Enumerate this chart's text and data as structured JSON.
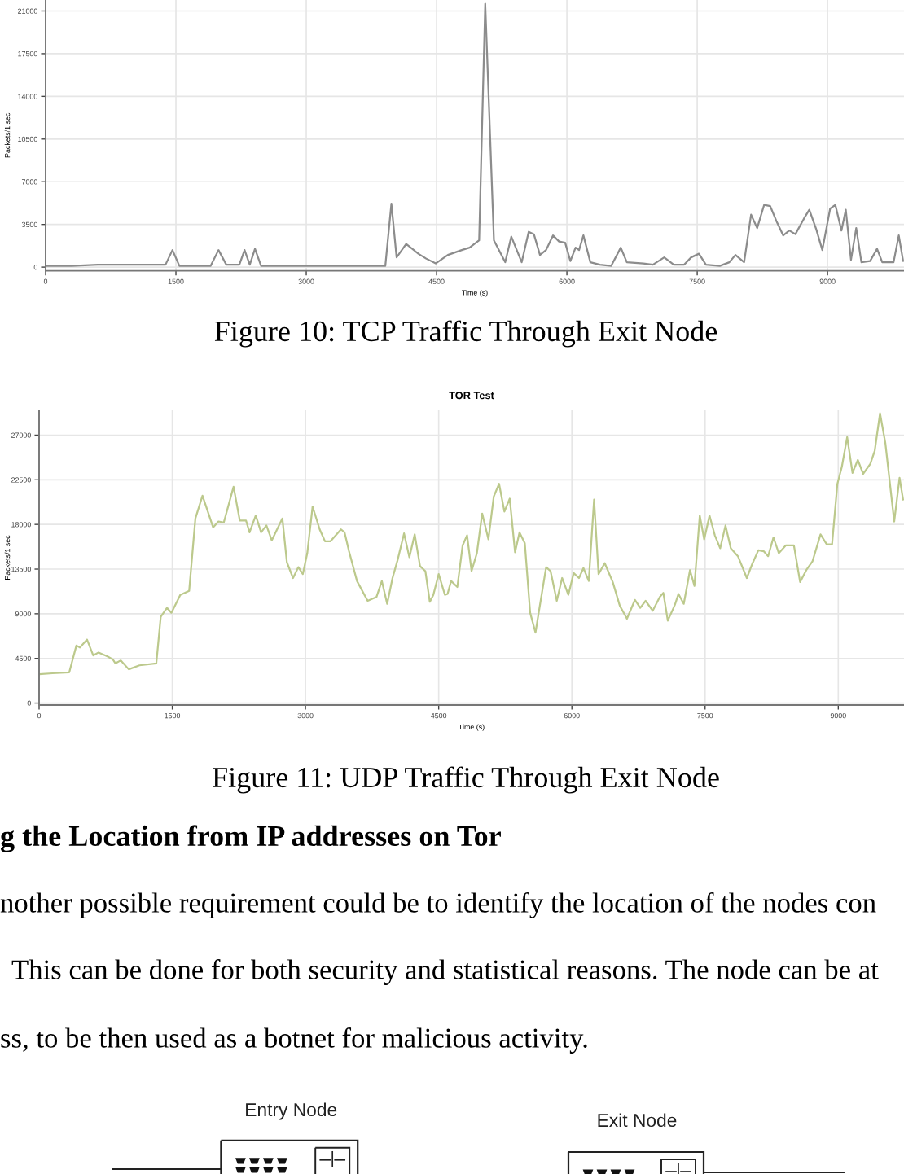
{
  "chart_data": [
    {
      "type": "line",
      "xlabel": "Time (s)",
      "ylabel": "Packets/1 sec",
      "annotations": [
        "Figure 10: TCP Traffic Through Exit Node"
      ],
      "color": "#8c8c8c",
      "grid": true,
      "xlim": [
        0,
        9880
      ],
      "ylim": [
        -300,
        21900
      ],
      "xticks": [
        0,
        1500,
        3000,
        4500,
        6000,
        7500,
        9000
      ],
      "yticks": [
        0,
        3500,
        7000,
        10500,
        14000,
        17500,
        21000
      ],
      "x": [
        0,
        300,
        600,
        900,
        1200,
        1380,
        1460,
        1540,
        1900,
        1990,
        2080,
        2230,
        2290,
        2350,
        2410,
        2480,
        2800,
        3200,
        3600,
        3910,
        3980,
        4040,
        4150,
        4290,
        4380,
        4490,
        4630,
        4790,
        4880,
        4990,
        5060,
        5160,
        5290,
        5360,
        5480,
        5560,
        5620,
        5690,
        5760,
        5840,
        5910,
        5980,
        6040,
        6100,
        6140,
        6190,
        6270,
        6380,
        6510,
        6620,
        6690,
        6880,
        6990,
        7120,
        7230,
        7350,
        7430,
        7520,
        7600,
        7760,
        7870,
        7940,
        8040,
        8120,
        8190,
        8270,
        8340,
        8410,
        8490,
        8560,
        8630,
        8730,
        8790,
        8870,
        8940,
        9030,
        9090,
        9160,
        9210,
        9270,
        9330,
        9390,
        9490,
        9570,
        9630,
        9760,
        9820,
        9870
      ],
      "values": [
        100,
        100,
        200,
        200,
        200,
        200,
        1400,
        100,
        100,
        1400,
        200,
        200,
        1400,
        200,
        1500,
        100,
        100,
        100,
        100,
        100,
        5200,
        800,
        1900,
        1100,
        700,
        300,
        1000,
        1400,
        1600,
        2200,
        21600,
        2200,
        400,
        2500,
        400,
        2900,
        2700,
        1000,
        1400,
        2600,
        2100,
        2000,
        500,
        1600,
        1400,
        2600,
        400,
        200,
        100,
        1600,
        400,
        300,
        200,
        800,
        200,
        200,
        800,
        1100,
        200,
        100,
        400,
        1000,
        400,
        4300,
        3200,
        5100,
        5000,
        3800,
        2600,
        3000,
        2700,
        4000,
        4700,
        3100,
        1400,
        4800,
        5100,
        3000,
        4700,
        600,
        3200,
        400,
        500,
        1500,
        400,
        400,
        2600,
        500
      ]
    },
    {
      "type": "line",
      "title": "TOR Test",
      "xlabel": "Time (s)",
      "ylabel": "Packets/1 sec",
      "annotations": [
        "Figure 11: UDP Traffic Through Exit Node"
      ],
      "color": "#bcc98c",
      "grid": true,
      "xlim": [
        0,
        9740
      ],
      "ylim": [
        -200,
        29500
      ],
      "xticks": [
        0,
        1500,
        3000,
        4500,
        6000,
        7500,
        9000
      ],
      "yticks": [
        0,
        4500,
        9000,
        13500,
        18000,
        22500,
        27000
      ],
      "x": [
        0,
        150,
        340,
        420,
        460,
        540,
        610,
        670,
        770,
        830,
        860,
        920,
        1010,
        1130,
        1320,
        1370,
        1440,
        1490,
        1590,
        1690,
        1760,
        1840,
        1960,
        2020,
        2080,
        2190,
        2260,
        2330,
        2370,
        2440,
        2500,
        2560,
        2620,
        2740,
        2790,
        2860,
        2920,
        2970,
        3020,
        3080,
        3160,
        3220,
        3280,
        3400,
        3440,
        3490,
        3580,
        3700,
        3800,
        3860,
        3920,
        3980,
        4040,
        4110,
        4170,
        4230,
        4290,
        4350,
        4400,
        4440,
        4500,
        4570,
        4600,
        4640,
        4710,
        4770,
        4820,
        4870,
        4930,
        4990,
        5060,
        5120,
        5180,
        5240,
        5300,
        5360,
        5410,
        5470,
        5530,
        5590,
        5650,
        5710,
        5760,
        5830,
        5890,
        5960,
        6020,
        6080,
        6130,
        6190,
        6250,
        6300,
        6370,
        6460,
        6540,
        6620,
        6710,
        6770,
        6830,
        6910,
        6990,
        7030,
        7080,
        7160,
        7200,
        7260,
        7330,
        7380,
        7440,
        7490,
        7550,
        7610,
        7670,
        7730,
        7790,
        7870,
        7970,
        8030,
        8100,
        8160,
        8210,
        8270,
        8330,
        8410,
        8500,
        8570,
        8640,
        8710,
        8800,
        8870,
        8930,
        8990,
        9040,
        9100,
        9160,
        9220,
        9280,
        9360,
        9410,
        9470,
        9530,
        9630,
        9690,
        9730
      ],
      "values": [
        2900,
        3000,
        3100,
        5800,
        5600,
        6400,
        4800,
        5100,
        4700,
        4400,
        4000,
        4300,
        3400,
        3800,
        4000,
        8700,
        9600,
        9100,
        10900,
        11300,
        18600,
        20900,
        17700,
        18300,
        18200,
        21800,
        18400,
        18400,
        17200,
        18900,
        17200,
        17900,
        16400,
        18600,
        14200,
        12600,
        13700,
        13000,
        15100,
        19800,
        17500,
        16300,
        16300,
        17500,
        17200,
        15300,
        12300,
        10300,
        10700,
        12300,
        10000,
        12600,
        14500,
        17100,
        14700,
        17000,
        13800,
        13300,
        10200,
        10900,
        13000,
        10900,
        11000,
        12300,
        11700,
        15900,
        16900,
        13300,
        15100,
        19100,
        16500,
        20800,
        22100,
        19300,
        20600,
        15200,
        17200,
        16100,
        9100,
        7100,
        10400,
        13700,
        13300,
        10300,
        12600,
        10900,
        13100,
        12600,
        13600,
        12300,
        20500,
        13000,
        14100,
        12200,
        9800,
        8500,
        10400,
        9600,
        10300,
        9300,
        10700,
        11100,
        8300,
        9900,
        11000,
        10000,
        13400,
        11800,
        18900,
        16500,
        18900,
        16900,
        15600,
        17900,
        15600,
        14800,
        12600,
        14000,
        15400,
        15300,
        14800,
        16700,
        15100,
        15900,
        15900,
        12200,
        13400,
        14300,
        17000,
        16000,
        16000,
        22100,
        23800,
        26800,
        23200,
        24500,
        23100,
        24100,
        25400,
        29200,
        26200,
        18300,
        22700,
        20500
      ]
    },
    {
      "type": "other",
      "title": "g the Location from IP addresses on Tor",
      "annotations": [
        "nother possible requirement could be to identify the location of the nodes con",
        "This can be done for both security and statistical reasons. The node can be at",
        "ss, to be then used as a botnet for malicious activity."
      ],
      "categories": [
        "Entry Node",
        "Exit Node"
      ]
    }
  ]
}
